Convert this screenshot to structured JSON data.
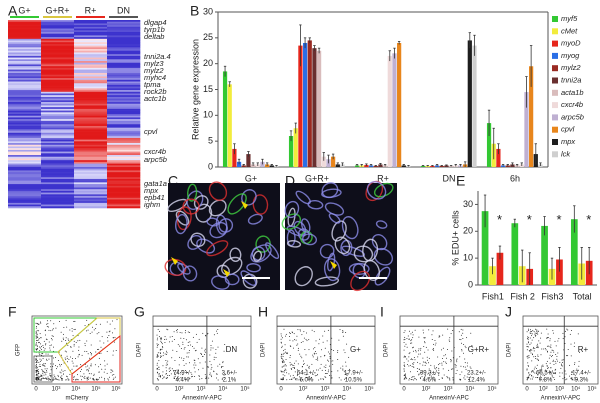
{
  "panel_labels": [
    "A",
    "B",
    "C",
    "D",
    "E",
    "F",
    "G",
    "H",
    "I",
    "J"
  ],
  "heatmap": {
    "columns": [
      "G+",
      "G+R+",
      "R+",
      "DN"
    ],
    "genes": [
      "dlgap4",
      "tyrp1b",
      "deltab",
      "tnni2a.4",
      "mylz3",
      "mylz2",
      "myhc4",
      "tpma",
      "rock2b",
      "actc1b",
      "cpvl",
      "cxcr4b",
      "arpc5b",
      "gata1a",
      "mpx",
      "epb41",
      "ighm"
    ]
  },
  "chart_data": [
    {
      "type": "bar",
      "ylabel": "Relative gene expression",
      "categories": [
        "G+",
        "G+R+",
        "R+",
        "DN",
        "6h"
      ],
      "ylim": [
        0,
        30
      ],
      "yticks": [
        0,
        5,
        10,
        15,
        20,
        25,
        30
      ],
      "series": [
        {
          "name": "myf5",
          "color": "#33c833",
          "values": [
            18.5,
            6,
            0.3,
            0.2,
            8.5
          ],
          "errors": [
            1,
            1,
            0.2,
            0.1,
            2.5
          ]
        },
        {
          "name": "cMet",
          "color": "#f2ec3c",
          "values": [
            16,
            7.5,
            0.3,
            0.2,
            4.5
          ],
          "errors": [
            0.5,
            1,
            0.2,
            0.1,
            3
          ]
        },
        {
          "name": "myoD",
          "color": "#e6261c",
          "values": [
            3.5,
            23.5,
            0.4,
            0.2,
            3.5
          ],
          "errors": [
            1,
            4,
            0.2,
            0.1,
            1
          ]
        },
        {
          "name": "myog",
          "color": "#2b6ee6",
          "values": [
            1,
            24,
            0.3,
            0.3,
            0.3
          ],
          "errors": [
            0.5,
            1,
            0.2,
            0.2,
            0.2
          ]
        },
        {
          "name": "mylz2",
          "color": "#9a2a22",
          "values": [
            0.3,
            24.5,
            0.2,
            0.2,
            0.3
          ],
          "errors": [
            0.2,
            0.5,
            0.1,
            0.1,
            0.2
          ]
        },
        {
          "name": "tnni2a",
          "color": "#6a2f2f",
          "values": [
            2.5,
            23,
            0.5,
            0.3,
            0.5
          ],
          "errors": [
            0.5,
            0.5,
            0.2,
            0.1,
            0.3
          ]
        },
        {
          "name": "acta1b",
          "color": "#d9bcbc",
          "values": [
            0.5,
            22.5,
            0.3,
            0.2,
            0.3
          ],
          "errors": [
            0.3,
            0.5,
            0.2,
            0.1,
            0.2
          ]
        },
        {
          "name": "cxcr4b",
          "color": "#efdada",
          "values": [
            0.5,
            2,
            21.5,
            0.3,
            0.5
          ],
          "errors": [
            0.3,
            0.8,
            1,
            0.2,
            0.3
          ]
        },
        {
          "name": "arpc5b",
          "color": "#bfb0d2",
          "values": [
            1,
            1.5,
            22,
            0.3,
            14.5
          ],
          "errors": [
            0.5,
            0.8,
            1,
            0.2,
            3
          ]
        },
        {
          "name": "cpvl",
          "color": "#e8861c",
          "values": [
            0.5,
            2,
            24,
            0.5,
            19.5
          ],
          "errors": [
            0.3,
            0.5,
            0.3,
            0.5,
            4
          ]
        },
        {
          "name": "mpx",
          "color": "#1e1e1e",
          "values": [
            0.3,
            0.5,
            0.3,
            24.5,
            2.5
          ],
          "errors": [
            0.2,
            0.3,
            0.2,
            1.5,
            2
          ]
        },
        {
          "name": "lck",
          "color": "#cfcfcf",
          "values": [
            0.2,
            0.5,
            0.2,
            23.5,
            0.5
          ],
          "errors": [
            0.1,
            0.3,
            0.1,
            2,
            0.3
          ]
        }
      ]
    },
    {
      "type": "bar",
      "ylabel": "% EDU+ cells",
      "categories": [
        "Fish1",
        "Fish 2",
        "Fish3",
        "Total"
      ],
      "ylim": [
        0,
        35
      ],
      "yticks": [
        0,
        10,
        20,
        30
      ],
      "annotations": [
        "*",
        "*",
        "*",
        "*"
      ],
      "series": [
        {
          "color": "#33c833",
          "values": [
            27.5,
            23,
            22,
            24.5
          ],
          "errors": [
            6,
            1.5,
            3.5,
            5
          ]
        },
        {
          "color": "#f2ec3c",
          "values": [
            7,
            7,
            6,
            8
          ],
          "errors": [
            3,
            6,
            4,
            6
          ]
        },
        {
          "color": "#e6261c",
          "values": [
            12,
            6,
            9.5,
            9
          ],
          "errors": [
            2.5,
            6,
            4.5,
            5
          ]
        }
      ]
    }
  ],
  "flow": [
    {
      "y_label": "GFP",
      "x_label": "mCherry",
      "x_ticks": [
        "0",
        "10³",
        "10⁴",
        "10⁵",
        "10⁶"
      ]
    },
    {
      "y_label": "DAPI",
      "x_label": "AnnexinV-APC",
      "x_ticks": [
        "0",
        "10²",
        "10³",
        "10⁴",
        "10⁵"
      ],
      "gate": "DN",
      "lower_left": [
        "74.9+/-",
        "4.4%"
      ],
      "lower_right": [
        "3.6+/-",
        "2.1%"
      ]
    },
    {
      "y_label": "DAPI",
      "x_label": "AnnexinV-APC",
      "x_ticks": [
        "0",
        "10²",
        "10³",
        "10⁴",
        "10⁵"
      ],
      "gate": "G+",
      "lower_left": [
        "64.1+/-",
        "6.0%"
      ],
      "lower_right": [
        "17.9+/-",
        "10.5%"
      ]
    },
    {
      "y_label": "DAPI",
      "x_label": "AnnexinV-APC",
      "x_ticks": [
        "0",
        "10²",
        "10³",
        "10⁴",
        "10⁵"
      ],
      "gate": "G+R+",
      "lower_left": [
        "39.3+/-",
        "4.6%"
      ],
      "lower_right": [
        "23.2+/-",
        "12.4%"
      ]
    },
    {
      "y_label": "DAPI",
      "x_label": "AnnexinV-APC",
      "x_ticks": [
        "0",
        "10²",
        "10³",
        "10⁴",
        "10⁵"
      ],
      "gate": "R+",
      "lower_left": [
        "66.5+/-",
        "7.8%"
      ],
      "lower_right": [
        "17.4+/-",
        "9.3%"
      ]
    }
  ]
}
